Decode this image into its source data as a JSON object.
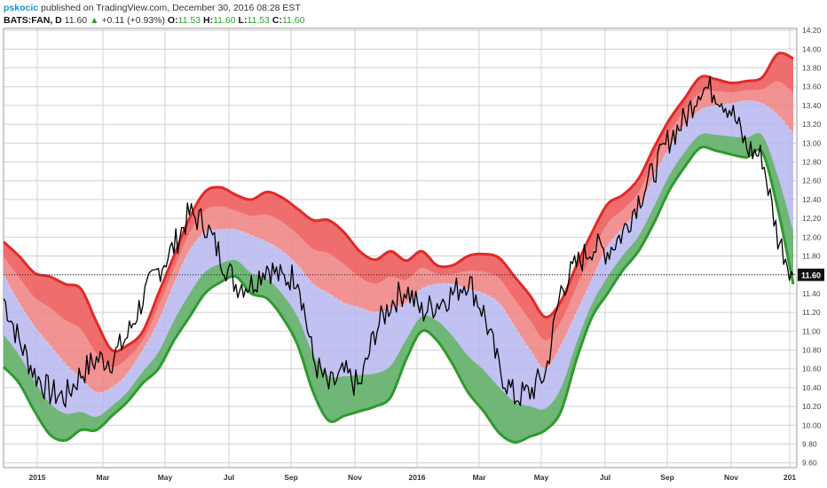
{
  "header": {
    "author": "pskocic",
    "published_text": "published on TradingView.com, December 30, 2016 08:28 EST",
    "symbol": "BATS:FAN, D",
    "last": "11.60",
    "change": "+0.11 (+0.93%)",
    "o_label": "O:",
    "o_value": "11.53",
    "h_label": "H:",
    "h_value": "11.60",
    "l_label": "L:",
    "l_value": "11.53",
    "c_label": "C:",
    "c_value": "11.60"
  },
  "chart_data": {
    "type": "line",
    "ylim": [
      9.55,
      14.22
    ],
    "yticks": [
      "14.20",
      "14.00",
      "13.80",
      "13.60",
      "13.40",
      "13.20",
      "13.00",
      "12.80",
      "12.60",
      "12.40",
      "12.20",
      "12.00",
      "11.80",
      "11.60",
      "11.40",
      "11.20",
      "11.00",
      "10.80",
      "10.60",
      "10.40",
      "10.20",
      "10.00",
      "9.80",
      "9.60"
    ],
    "xticks": [
      "2015",
      "Mar",
      "May",
      "Jul",
      "Sep",
      "Nov",
      "2016",
      "Mar",
      "May",
      "Jul",
      "Sep",
      "Nov",
      "201"
    ],
    "last_price_label": "11.60",
    "last_price": 11.6,
    "colors": {
      "upper": "#f08080",
      "mid": "#b6b6f0",
      "lower": "#62b462",
      "upper_edge": "#e02a2a",
      "lower_edge": "#2e9a2e",
      "price": "#000000"
    },
    "dates_index": [
      0,
      10,
      20,
      30,
      40,
      50,
      60,
      70,
      80,
      90,
      100,
      110,
      120,
      130,
      140,
      150,
      160,
      170,
      180,
      190,
      200,
      210,
      220,
      230,
      240,
      250,
      260,
      270,
      280,
      290,
      300,
      310,
      320,
      330,
      340,
      350,
      360,
      370,
      380,
      390,
      400,
      410,
      420,
      430,
      440,
      450,
      460,
      470,
      480,
      490,
      500,
      510
    ],
    "upper": [
      11.95,
      11.8,
      11.62,
      11.58,
      11.5,
      11.45,
      11.1,
      10.8,
      10.85,
      11.0,
      11.4,
      11.8,
      12.2,
      12.48,
      12.53,
      12.45,
      12.4,
      12.48,
      12.42,
      12.3,
      12.18,
      12.18,
      12.05,
      11.85,
      11.76,
      11.85,
      11.75,
      11.85,
      11.7,
      11.7,
      11.8,
      11.82,
      11.78,
      11.58,
      11.38,
      11.15,
      11.32,
      11.7,
      12.05,
      12.35,
      12.45,
      12.62,
      12.95,
      13.25,
      13.48,
      13.7,
      13.68,
      13.64,
      13.66,
      13.7,
      13.95,
      13.9
    ],
    "mid": [
      11.6,
      11.3,
      11.05,
      10.85,
      10.65,
      10.5,
      10.35,
      10.4,
      10.55,
      10.8,
      11.1,
      11.5,
      11.85,
      12.05,
      12.08,
      12.08,
      12.02,
      11.95,
      11.85,
      11.7,
      11.5,
      11.4,
      11.3,
      11.25,
      11.2,
      11.25,
      11.3,
      11.45,
      11.5,
      11.5,
      11.45,
      11.4,
      11.3,
      11.05,
      10.8,
      10.6,
      10.85,
      11.2,
      11.55,
      11.9,
      12.1,
      12.3,
      12.65,
      12.95,
      13.2,
      13.35,
      13.4,
      13.42,
      13.45,
      13.42,
      13.3,
      13.1
    ],
    "lower": [
      10.62,
      10.45,
      10.15,
      9.9,
      9.84,
      9.95,
      9.95,
      10.1,
      10.25,
      10.45,
      10.6,
      10.9,
      11.15,
      11.4,
      11.52,
      11.58,
      11.4,
      11.35,
      11.15,
      10.85,
      10.35,
      10.05,
      10.1,
      10.15,
      10.2,
      10.3,
      10.7,
      11.0,
      10.9,
      10.65,
      10.35,
      10.15,
      9.92,
      9.82,
      9.88,
      9.95,
      10.15,
      10.7,
      11.15,
      11.4,
      11.65,
      11.85,
      12.15,
      12.5,
      12.75,
      12.95,
      12.92,
      12.88,
      12.85,
      12.9,
      12.3,
      11.5
    ],
    "price": [
      11.35,
      10.9,
      10.55,
      10.35,
      10.3,
      10.55,
      10.7,
      10.7,
      10.95,
      11.35,
      11.65,
      11.9,
      12.25,
      12.15,
      11.8,
      11.5,
      11.5,
      11.7,
      11.55,
      11.6,
      10.7,
      10.4,
      10.55,
      10.4,
      11.0,
      11.3,
      11.45,
      11.2,
      11.3,
      11.4,
      11.55,
      11.2,
      10.6,
      10.3,
      10.35,
      10.55,
      11.45,
      11.7,
      11.9,
      11.85,
      12.05,
      12.4,
      12.7,
      13.05,
      13.25,
      13.6,
      13.55,
      13.35,
      12.95,
      12.85,
      12.0,
      11.6
    ]
  }
}
